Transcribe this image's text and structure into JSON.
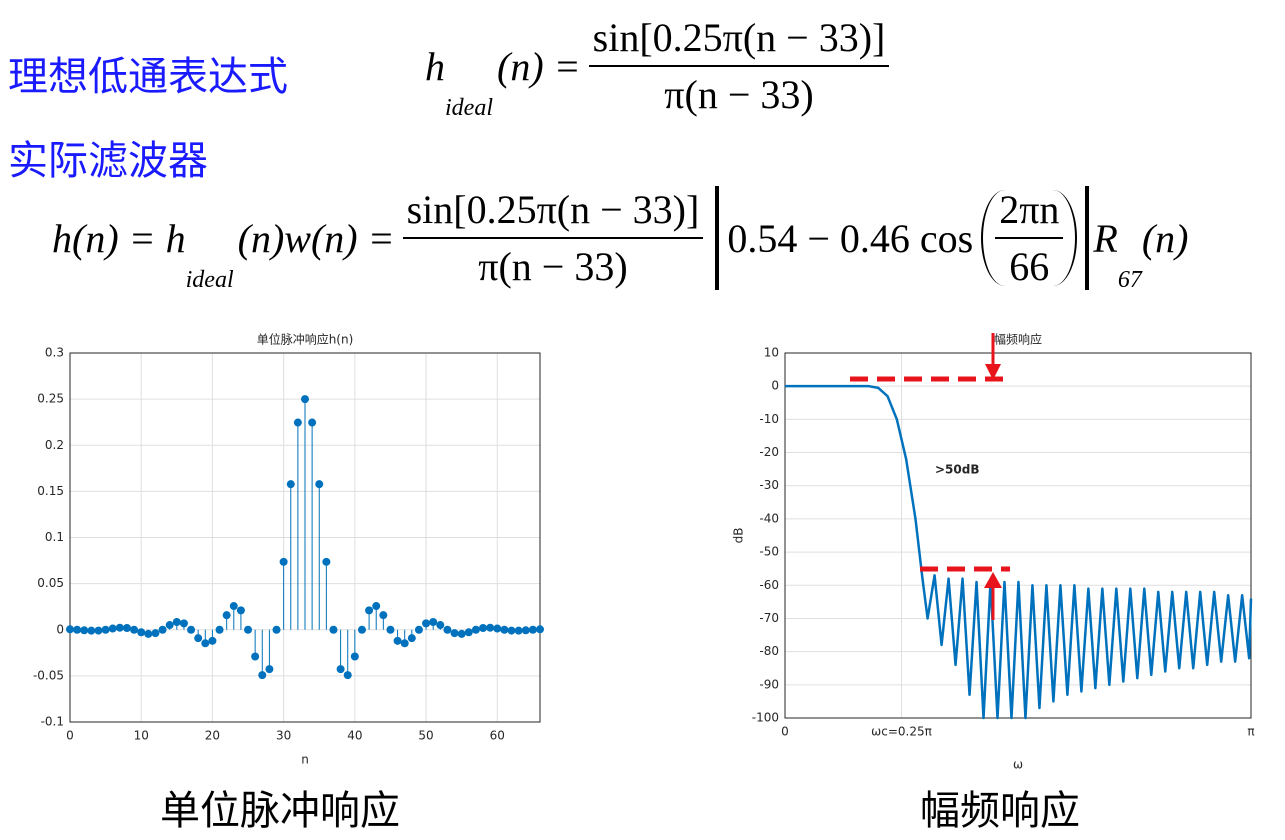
{
  "slide": {
    "heading_ideal": "理想低通表达式",
    "heading_actual": "实际滤波器",
    "formula_ideal": {
      "lhs": "h",
      "lhs_sub": "ideal",
      "mid": "(n) =",
      "numerator": "sin[0.25π(n − 33)]",
      "denominator": "π(n − 33)"
    },
    "formula_actual": {
      "lhs": "h(n) = h",
      "lhs_sub": "ideal",
      "mid": "(n)w(n) =",
      "numerator": "sin[0.25π(n − 33)]",
      "denominator": "π(n − 33)",
      "window_const": "0.54 − 0.46 cos",
      "window_numerator": "2πn",
      "window_denominator": "66",
      "tail": "R",
      "tail_sub": "67",
      "tail_end": "(n)"
    },
    "caption_left": "单位脉冲响应",
    "caption_right": "幅频响应"
  },
  "chart_data": [
    {
      "type": "stem",
      "title": "单位脉冲响应h(n)",
      "xlabel": "n",
      "color": "#0072bd",
      "grid": true,
      "xlim": [
        0,
        66
      ],
      "xticks": [
        0,
        10,
        20,
        30,
        40,
        50,
        60
      ],
      "ylim": [
        -0.1,
        0.3
      ],
      "yticks": [
        -0.1,
        -0.05,
        0,
        0.05,
        0.1,
        0.15,
        0.2,
        0.25,
        0.3
      ],
      "x": [
        0,
        1,
        2,
        3,
        4,
        5,
        6,
        7,
        8,
        9,
        10,
        11,
        12,
        13,
        14,
        15,
        16,
        17,
        18,
        19,
        20,
        21,
        22,
        23,
        24,
        25,
        26,
        27,
        28,
        29,
        30,
        31,
        32,
        33,
        34,
        35,
        36,
        37,
        38,
        39,
        40,
        41,
        42,
        43,
        44,
        45,
        46,
        47,
        48,
        49,
        50,
        51,
        52,
        53,
        54,
        55,
        56,
        57,
        58,
        59,
        60,
        61,
        62,
        63,
        64,
        65,
        66
      ],
      "values": [
        0.0005,
        0,
        -0.0006,
        -0.001,
        -0.0009,
        0,
        0.0013,
        0.0022,
        0.0019,
        0,
        -0.0027,
        -0.0045,
        -0.0037,
        0,
        0.0051,
        0.0084,
        0.0069,
        0,
        -0.0091,
        -0.0147,
        -0.012,
        0,
        0.0158,
        0.0257,
        0.021,
        0,
        -0.029,
        -0.0492,
        -0.0427,
        0,
        0.0736,
        0.1578,
        0.2246,
        0.25,
        0.2246,
        0.1578,
        0.0736,
        0,
        -0.0427,
        -0.0492,
        -0.029,
        0,
        0.021,
        0.0257,
        0.0158,
        0,
        -0.012,
        -0.0147,
        -0.0091,
        0,
        0.0069,
        0.0084,
        0.0051,
        0,
        -0.0037,
        -0.0045,
        -0.0027,
        0,
        0.0019,
        0.0022,
        0.0013,
        0,
        -0.0009,
        -0.001,
        -0.0006,
        0,
        0.0005
      ]
    },
    {
      "type": "line",
      "title": "幅频响应",
      "xlabel": "ω",
      "ylabel": "dB",
      "color": "#0072bd",
      "grid": true,
      "annotation": ">50dB",
      "xlim": [
        0,
        1
      ],
      "xticks": [
        0,
        {
          "value": 0.25,
          "label": "ωc=0.25π"
        },
        {
          "value": 1,
          "label": "π"
        }
      ],
      "ylim": [
        -100,
        10
      ],
      "yticks": [
        10,
        0,
        -10,
        -20,
        -30,
        -40,
        -50,
        -60,
        -70,
        -80,
        -90,
        -100
      ],
      "x": [
        0,
        0.1,
        0.18,
        0.2,
        0.22,
        0.24,
        0.26,
        0.28,
        0.295,
        0.306,
        0.321,
        0.336,
        0.351,
        0.366,
        0.381,
        0.396,
        0.411,
        0.426,
        0.441,
        0.456,
        0.471,
        0.486,
        0.501,
        0.516,
        0.531,
        0.546,
        0.561,
        0.576,
        0.591,
        0.606,
        0.621,
        0.636,
        0.651,
        0.666,
        0.681,
        0.696,
        0.711,
        0.726,
        0.741,
        0.756,
        0.771,
        0.786,
        0.801,
        0.816,
        0.831,
        0.846,
        0.861,
        0.876,
        0.891,
        0.906,
        0.921,
        0.936,
        0.951,
        0.966,
        0.981,
        0.996,
        1
      ],
      "values": [
        0,
        0,
        0,
        -0.5,
        -3,
        -10,
        -22,
        -40,
        -58,
        -70,
        -57,
        -78,
        -58,
        -84,
        -58,
        -93,
        -59,
        -100,
        -59,
        -100,
        -59,
        -100,
        -59,
        -100,
        -60,
        -97,
        -60,
        -95,
        -60,
        -93,
        -60,
        -92,
        -61,
        -91,
        -61,
        -90,
        -61,
        -89,
        -61,
        -88,
        -61,
        -87,
        -62,
        -86,
        -62,
        -85,
        -62,
        -85,
        -62,
        -84,
        -62,
        -83,
        -63,
        -83,
        -63,
        -82,
        -64
      ]
    }
  ]
}
